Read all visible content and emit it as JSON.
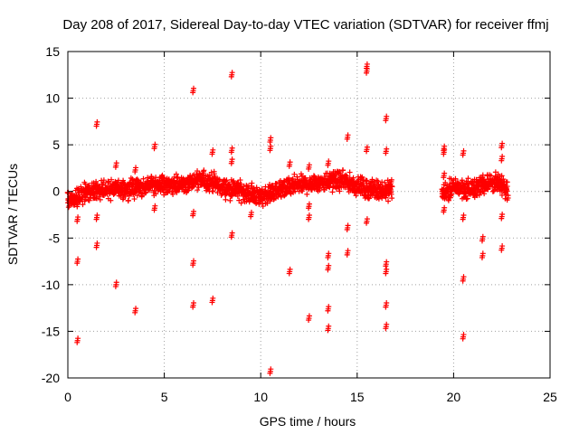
{
  "chart_data": {
    "type": "scatter",
    "title": "Day 208 of 2017, Sidereal Day-to-day VTEC variation (SDTVAR) for receiver ffmj",
    "xlabel": "GPS time / hours",
    "ylabel": "SDTVAR / TECUs",
    "xlim": [
      0,
      25
    ],
    "ylim": [
      -20,
      15
    ],
    "xticks": [
      "0",
      "5",
      "10",
      "15",
      "20",
      "25"
    ],
    "yticks": [
      "-20",
      "-15",
      "-10",
      "-5",
      "0",
      "5",
      "10",
      "15"
    ],
    "grid": true,
    "marker": "plus",
    "color": "#ff0000",
    "main_band": {
      "segments": [
        [
          0.0,
          16.8
        ],
        [
          19.4,
          22.8
        ]
      ],
      "center": [
        [
          0.0,
          -1.2
        ],
        [
          0.5,
          -0.6
        ],
        [
          1.0,
          0.2
        ],
        [
          1.5,
          -0.1
        ],
        [
          2.0,
          0.3
        ],
        [
          2.5,
          0.3
        ],
        [
          3.0,
          0.0
        ],
        [
          3.5,
          0.4
        ],
        [
          4.0,
          0.5
        ],
        [
          4.5,
          0.8
        ],
        [
          5.0,
          0.7
        ],
        [
          5.5,
          0.6
        ],
        [
          6.0,
          0.8
        ],
        [
          6.5,
          1.0
        ],
        [
          7.0,
          1.2
        ],
        [
          7.5,
          1.0
        ],
        [
          8.0,
          0.4
        ],
        [
          8.5,
          0.3
        ],
        [
          9.0,
          0.0
        ],
        [
          9.5,
          -0.3
        ],
        [
          10.0,
          -0.5
        ],
        [
          10.5,
          -0.2
        ],
        [
          11.0,
          0.2
        ],
        [
          11.5,
          0.5
        ],
        [
          12.0,
          0.7
        ],
        [
          12.5,
          0.8
        ],
        [
          13.0,
          1.0
        ],
        [
          13.5,
          1.1
        ],
        [
          14.0,
          1.2
        ],
        [
          14.5,
          1.0
        ],
        [
          15.0,
          0.6
        ],
        [
          15.5,
          0.3
        ],
        [
          16.0,
          0.2
        ],
        [
          16.5,
          0.1
        ],
        [
          16.8,
          0.3
        ],
        [
          19.4,
          -0.2
        ],
        [
          19.8,
          0.2
        ],
        [
          20.2,
          0.4
        ],
        [
          20.6,
          0.3
        ],
        [
          21.0,
          0.2
        ],
        [
          21.4,
          0.6
        ],
        [
          21.8,
          1.0
        ],
        [
          22.2,
          0.9
        ],
        [
          22.5,
          0.5
        ],
        [
          22.8,
          0.2
        ]
      ],
      "spread": 0.9
    },
    "outliers": [
      [
        0.5,
        -7.5
      ],
      [
        0.5,
        -16.0
      ],
      [
        0.5,
        -3.0
      ],
      [
        1.5,
        7.2
      ],
      [
        1.5,
        -5.8
      ],
      [
        1.5,
        -2.8
      ],
      [
        2.5,
        2.8
      ],
      [
        2.5,
        -10.0
      ],
      [
        3.5,
        2.3
      ],
      [
        3.5,
        -12.8
      ],
      [
        4.5,
        4.8
      ],
      [
        4.5,
        -1.8
      ],
      [
        6.5,
        10.8
      ],
      [
        6.5,
        -7.7
      ],
      [
        6.5,
        -12.2
      ],
      [
        6.5,
        -2.4
      ],
      [
        7.5,
        4.2
      ],
      [
        7.5,
        -11.7
      ],
      [
        8.5,
        12.5
      ],
      [
        8.5,
        4.4
      ],
      [
        8.5,
        -4.7
      ],
      [
        8.5,
        3.2
      ],
      [
        9.5,
        -2.5
      ],
      [
        10.5,
        5.5
      ],
      [
        10.5,
        4.6
      ],
      [
        10.5,
        -19.3
      ],
      [
        11.5,
        2.9
      ],
      [
        11.5,
        -8.6
      ],
      [
        12.5,
        2.6
      ],
      [
        12.5,
        -13.6
      ],
      [
        12.5,
        -2.8
      ],
      [
        12.5,
        -1.6
      ],
      [
        13.5,
        3.0
      ],
      [
        13.5,
        -6.9
      ],
      [
        13.5,
        -8.2
      ],
      [
        13.5,
        -12.6
      ],
      [
        13.5,
        -14.7
      ],
      [
        14.5,
        5.8
      ],
      [
        14.5,
        -3.9
      ],
      [
        14.5,
        -6.6
      ],
      [
        15.5,
        13.4
      ],
      [
        15.5,
        12.9
      ],
      [
        15.5,
        4.5
      ],
      [
        15.5,
        -3.2
      ],
      [
        16.5,
        7.8
      ],
      [
        16.5,
        4.3
      ],
      [
        16.5,
        -7.8
      ],
      [
        16.5,
        -8.6
      ],
      [
        16.5,
        -12.2
      ],
      [
        16.5,
        -14.5
      ],
      [
        19.5,
        4.6
      ],
      [
        19.5,
        4.2
      ],
      [
        19.5,
        1.7
      ],
      [
        19.5,
        -2.0
      ],
      [
        20.5,
        4.1
      ],
      [
        20.5,
        -2.8
      ],
      [
        20.5,
        -9.4
      ],
      [
        20.5,
        -15.6
      ],
      [
        21.5,
        -5.1
      ],
      [
        21.5,
        -6.9
      ],
      [
        21.5,
        1.5
      ],
      [
        22.5,
        4.9
      ],
      [
        22.5,
        3.5
      ],
      [
        22.5,
        -2.7
      ],
      [
        22.5,
        -6.1
      ]
    ]
  }
}
